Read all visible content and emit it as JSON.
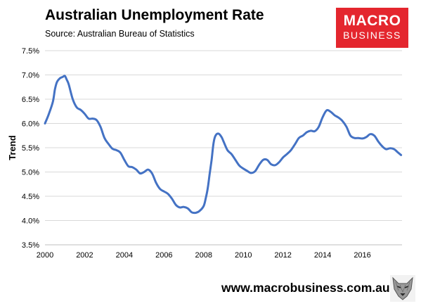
{
  "header": {
    "title": "Australian Unemployment Rate",
    "subtitle": "Source: Australian Bureau of Statistics"
  },
  "logo": {
    "line1": "MACRO",
    "line2": "BUSINESS",
    "color": "#e4262e"
  },
  "footer": {
    "website": "www.macrobusiness.com.au",
    "mascot_icon": "wolf-head-icon"
  },
  "chart_data": {
    "type": "line",
    "title": "Australian Unemployment Rate",
    "ylabel": "Trend",
    "xlabel": "",
    "xlim": [
      2000,
      2018
    ],
    "ylim": [
      3.5,
      7.5
    ],
    "y_ticks": [
      "3.5%",
      "4.0%",
      "4.5%",
      "5.0%",
      "5.5%",
      "6.0%",
      "6.5%",
      "7.0%",
      "7.5%"
    ],
    "x_ticks": [
      "2000",
      "2002",
      "2004",
      "2006",
      "2008",
      "2010",
      "2012",
      "2014",
      "2016"
    ],
    "grid": true,
    "legend": "none",
    "series": [
      {
        "color": "#4472c4",
        "x": [
          2000.0,
          2000.2,
          2000.4,
          2000.5,
          2000.6,
          2000.75,
          2000.9,
          2001.0,
          2001.1,
          2001.2,
          2001.4,
          2001.6,
          2001.8,
          2002.0,
          2002.2,
          2002.4,
          2002.6,
          2002.8,
          2003.0,
          2003.2,
          2003.4,
          2003.6,
          2003.8,
          2004.0,
          2004.2,
          2004.4,
          2004.6,
          2004.8,
          2005.0,
          2005.2,
          2005.4,
          2005.6,
          2005.8,
          2006.0,
          2006.2,
          2006.4,
          2006.6,
          2006.8,
          2007.0,
          2007.2,
          2007.4,
          2007.6,
          2007.8,
          2008.0,
          2008.1,
          2008.2,
          2008.3,
          2008.4,
          2008.5,
          2008.6,
          2008.75,
          2008.9,
          2009.0,
          2009.2,
          2009.4,
          2009.6,
          2009.8,
          2010.0,
          2010.2,
          2010.4,
          2010.6,
          2010.8,
          2011.0,
          2011.2,
          2011.4,
          2011.6,
          2011.8,
          2012.0,
          2012.2,
          2012.4,
          2012.6,
          2012.8,
          2013.0,
          2013.2,
          2013.4,
          2013.6,
          2013.8,
          2014.0,
          2014.2,
          2014.4,
          2014.6,
          2014.8,
          2015.0,
          2015.2,
          2015.4,
          2015.6,
          2015.8,
          2016.0,
          2016.2,
          2016.4,
          2016.6,
          2016.8,
          2017.0,
          2017.2,
          2017.4,
          2017.6,
          2017.8,
          2017.95
        ],
        "y": [
          6.0,
          6.2,
          6.45,
          6.7,
          6.85,
          6.93,
          6.96,
          6.98,
          6.9,
          6.8,
          6.5,
          6.33,
          6.28,
          6.2,
          6.1,
          6.1,
          6.07,
          5.93,
          5.7,
          5.58,
          5.48,
          5.45,
          5.4,
          5.25,
          5.12,
          5.1,
          5.05,
          4.97,
          5.0,
          5.05,
          4.97,
          4.78,
          4.65,
          4.6,
          4.55,
          4.45,
          4.32,
          4.27,
          4.28,
          4.25,
          4.17,
          4.16,
          4.2,
          4.3,
          4.45,
          4.65,
          4.95,
          5.25,
          5.6,
          5.75,
          5.79,
          5.72,
          5.63,
          5.45,
          5.37,
          5.25,
          5.13,
          5.07,
          5.02,
          4.98,
          5.02,
          5.15,
          5.25,
          5.25,
          5.16,
          5.14,
          5.2,
          5.3,
          5.37,
          5.45,
          5.57,
          5.7,
          5.75,
          5.82,
          5.85,
          5.84,
          5.93,
          6.13,
          6.27,
          6.24,
          6.17,
          6.12,
          6.05,
          5.93,
          5.75,
          5.7,
          5.7,
          5.69,
          5.72,
          5.78,
          5.75,
          5.63,
          5.53,
          5.47,
          5.49,
          5.47,
          5.4,
          5.35
        ]
      }
    ]
  }
}
